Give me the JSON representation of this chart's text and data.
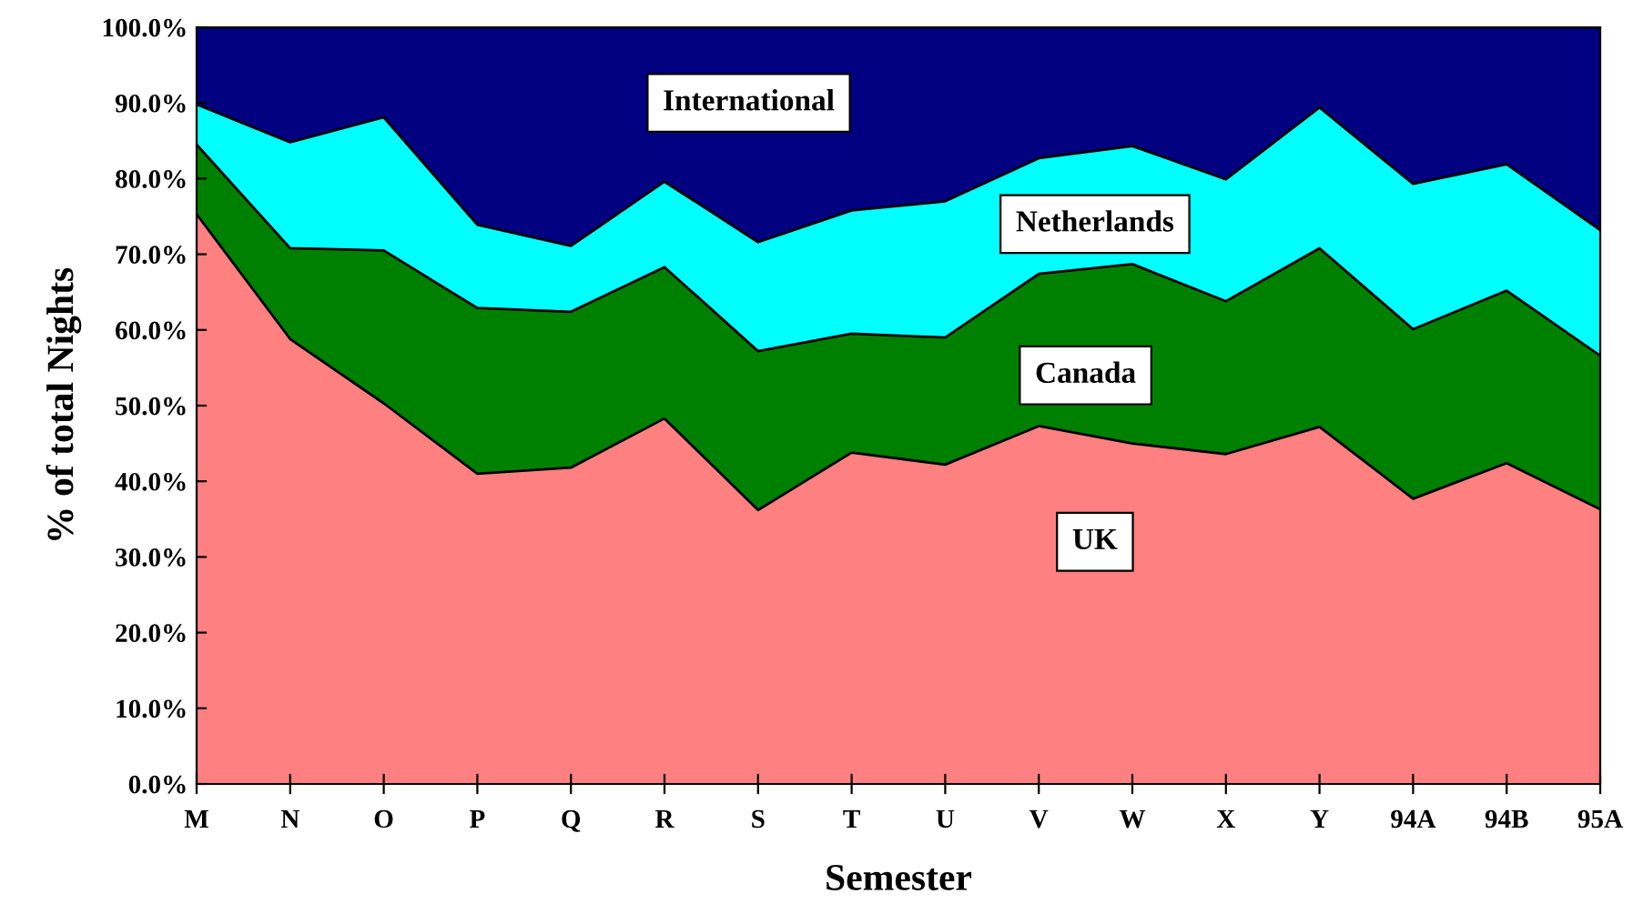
{
  "chart_data": {
    "type": "area",
    "stacked": true,
    "xlabel": "Semester",
    "ylabel": "% of total Nights",
    "categories": [
      "M",
      "N",
      "O",
      "P",
      "Q",
      "R",
      "S",
      "T",
      "U",
      "V",
      "W",
      "X",
      "Y",
      "94A",
      "94B",
      "95A"
    ],
    "series": [
      {
        "name": "UK",
        "color": "#ff8080",
        "values": [
          75.3,
          58.8,
          50.3,
          41.0,
          41.8,
          48.3,
          36.2,
          43.8,
          42.2,
          47.3,
          45.0,
          43.6,
          47.2,
          37.7,
          42.4,
          36.3
        ]
      },
      {
        "name": "Canada",
        "color": "#008000",
        "values": [
          9.2,
          12.0,
          20.2,
          21.9,
          20.6,
          20.0,
          21.0,
          15.7,
          16.8,
          20.1,
          23.7,
          20.2,
          23.6,
          22.4,
          22.8,
          20.3
        ]
      },
      {
        "name": "Netherlands",
        "color": "#00ffff",
        "values": [
          5.3,
          14.0,
          17.6,
          11.0,
          8.7,
          11.3,
          14.4,
          16.3,
          18.0,
          15.3,
          15.6,
          16.1,
          18.6,
          19.2,
          16.7,
          16.6
        ]
      },
      {
        "name": "International",
        "color": "#000080",
        "values": [
          10.2,
          15.2,
          11.9,
          26.1,
          28.9,
          20.4,
          28.4,
          24.2,
          23.0,
          17.3,
          15.7,
          20.1,
          10.6,
          20.7,
          18.1,
          26.8
        ]
      }
    ],
    "ylim": [
      0,
      100
    ],
    "yticks": [
      {
        "value": 0,
        "label": "0.0%"
      },
      {
        "value": 10,
        "label": "10.0%"
      },
      {
        "value": 20,
        "label": "20.0%"
      },
      {
        "value": 30,
        "label": "30.0%"
      },
      {
        "value": 40,
        "label": "40.0%"
      },
      {
        "value": 50,
        "label": "50.0%"
      },
      {
        "value": 60,
        "label": "60.0%"
      },
      {
        "value": 70,
        "label": "70.0%"
      },
      {
        "value": 80,
        "label": "80.0%"
      },
      {
        "value": 90,
        "label": "90.0%"
      },
      {
        "value": 100,
        "label": "100.0%"
      }
    ],
    "grid": false,
    "legend": false
  }
}
